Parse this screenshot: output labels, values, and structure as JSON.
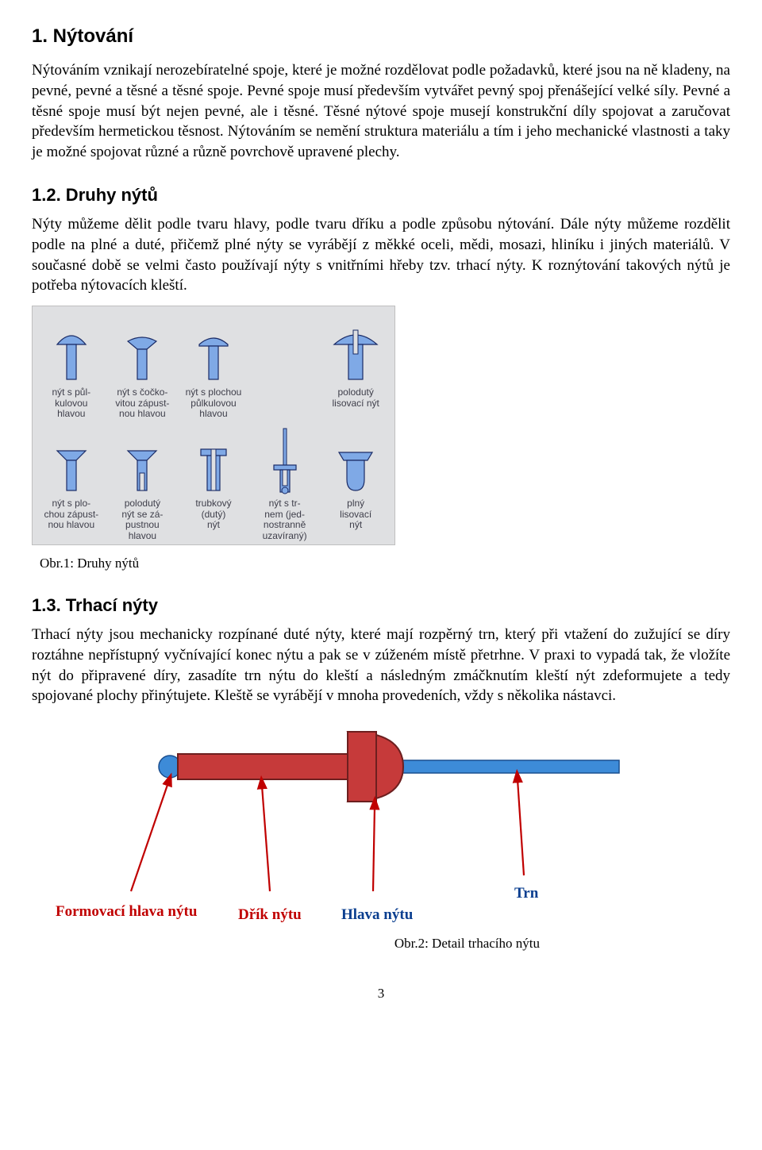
{
  "section1": {
    "heading": "1. Nýtování",
    "para": "Nýtováním vznikají nerozebíratelné spoje, které je možné rozdělovat podle požadavků, které jsou na ně kladeny, na pevné, pevné a těsné a těsné spoje. Pevné spoje musí především vytvářet pevný spoj přenášející velké síly. Pevné a těsné spoje musí být nejen pevné, ale i těsné. Těsné nýtové spoje musejí konstrukční díly spojovat a zaručovat především hermetickou těsnost. Nýtováním se nemění struktura materiálu a tím i jeho mechanické vlastnosti a taky je možné spojovat různé a různě povrchově upravené plechy."
  },
  "section12": {
    "heading": "1.2. Druhy nýtů",
    "para": "Nýty můžeme dělit podle tvaru hlavy, podle tvaru dříku a podle způsobu nýtování. Dále nýty můžeme rozdělit podle na plné a duté, přičemž plné nýty se vyrábějí z měkké oceli, mědi, mosazi, hliníku i jiných materiálů. V současné době se velmi často používají nýty s vnitřními hřeby tzv. trhací nýty. K roznýtování takových nýtů je potřeba nýtovacích kleští."
  },
  "fig1": {
    "caption": "Obr.1: Druhy nýtů",
    "bg": "#dfe0e2",
    "rivet_fill": "#7fa9e6",
    "rivet_stroke": "#1a2b66",
    "label_color": "#3e3e4a",
    "labels_row1": [
      "nýt s půl-\nkulovou\nhlavou",
      "nýt s čočko-\nvitou zápust-\nnou hlavou",
      "nýt s plochou\npůlkulovou\nhlavou",
      "",
      "polodutý\nlisovací nýt"
    ],
    "labels_row2": [
      "nýt s plo-\nchou zápust-\nnou hlavou",
      "polodutý\nnýt se zá-\npustnou\nhlavou",
      "trubkový\n(dutý)\nnýt",
      "nýt s tr-\nnem (jed-\nnostranně\nuzavíraný)",
      "plný\nlisovací\nnýt"
    ]
  },
  "section13": {
    "heading": "1.3. Trhací nýty",
    "para": "Trhací nýty jsou mechanicky rozpínané duté nýty, které mají rozpěrný trn, který při vtažení do zužující se díry roztáhne nepřístupný vyčnívající konec nýtu a pak se v zúženém místě přetrhne. V praxi to vypadá tak, že vložíte nýt do připravené díry, zasadíte trn nýtu do kleští a následným zmáčknutím kleští nýt zdeformujete  a tedy spojované plochy přinýtujete. Kleště se vyrábějí v mnoha provedeních, vždy s několika nástavci."
  },
  "fig2": {
    "caption": "Obr.2: Detail trhacího nýtu",
    "colors": {
      "head": "#c63a3a",
      "head_outline": "#6d1f1f",
      "shank": "#c63a3a",
      "shank_outline": "#6d1f1f",
      "mandrel": "#3d8bd8",
      "mandrel_outline": "#1a4e8f",
      "arrow": "#c00000"
    },
    "labels": {
      "formovaci": "Formovací hlava nýtu",
      "drik": "Dřík nýtu",
      "hlava": "Hlava nýtu",
      "trn": "Trn"
    },
    "label_colors": {
      "formovaci": "#c00000",
      "drik": "#c00000",
      "hlava": "#0a3e8f",
      "trn": "#0a3e8f"
    }
  },
  "pagenum": "3"
}
